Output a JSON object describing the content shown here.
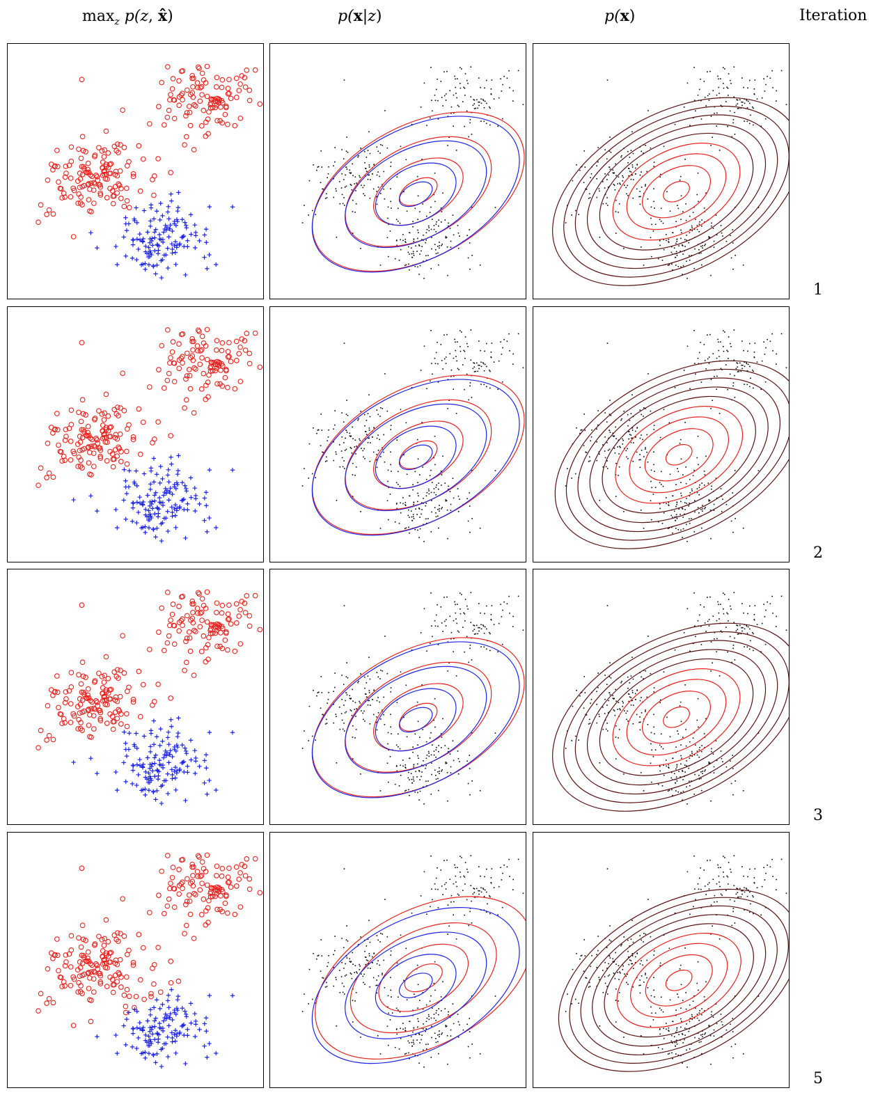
{
  "headers": {
    "col1_max": "max",
    "col1_sub": "z",
    "col1_rest_a": " p(",
    "col1_z": "z",
    "col1_comma": ", ",
    "col1_x": "x̂",
    "col1_close": ")",
    "col2_p": "p(",
    "col2_x": "x",
    "col2_bar": "|",
    "col2_z": "z",
    "col2_close": ")",
    "col3_p": "p(",
    "col3_x": "x",
    "col3_close": ")",
    "iteration": "Iteration"
  },
  "colors": {
    "cluster_a": "#e8201c",
    "cluster_b": "#1c22e8",
    "points": "#000000",
    "component_a_contour": "#e8201c",
    "component_b_contour": "#1c22e8",
    "mixture_outer_contour": "#5a1010",
    "mixture_inner_contour": "#e8201c"
  },
  "chart_data": [
    {
      "type": "scatter",
      "panel": "classification",
      "iteration": "1",
      "markers": {
        "cluster_a": "circle",
        "cluster_b": "plus"
      },
      "clusters": [
        {
          "marker": "circle",
          "color": "red",
          "center": [
            0.78,
            0.78
          ],
          "spread": [
            0.09,
            0.07
          ],
          "count": 110
        },
        {
          "marker": "circle",
          "color": "red",
          "center": [
            0.35,
            0.48
          ],
          "spread": [
            0.1,
            0.08
          ],
          "count": 140
        },
        {
          "marker": "plus",
          "color": "blue",
          "center": [
            0.62,
            0.25
          ],
          "spread": [
            0.09,
            0.07
          ],
          "count": 140
        }
      ],
      "split_line_offset": 0.0
    },
    {
      "type": "line",
      "panel": "components",
      "iteration": "1",
      "ellipses": [
        {
          "component": "a",
          "center": [
            0.58,
            0.42
          ],
          "angle": 62,
          "radii": [
            [
              0.16,
              0.09
            ],
            [
              0.38,
              0.22
            ],
            [
              0.62,
              0.36
            ],
            [
              0.9,
              0.52
            ]
          ]
        },
        {
          "component": "b",
          "center": [
            0.57,
            0.41
          ],
          "angle": 62,
          "radii": [
            [
              0.14,
              0.08
            ],
            [
              0.34,
              0.21
            ],
            [
              0.6,
              0.35
            ],
            [
              0.88,
              0.51
            ]
          ]
        }
      ]
    },
    {
      "type": "line",
      "panel": "mixture",
      "iteration": "1",
      "ellipses": {
        "center": [
          0.56,
          0.42
        ],
        "angle": 62,
        "levels": 9,
        "min_radii": [
          0.11,
          0.07
        ],
        "max_radii": [
          1.05,
          0.62
        ]
      }
    },
    {
      "type": "scatter",
      "panel": "classification",
      "iteration": "2",
      "split_line_offset": -0.04
    },
    {
      "type": "line",
      "panel": "components",
      "iteration": "2",
      "ellipses": [
        {
          "component": "a",
          "center": [
            0.58,
            0.42
          ],
          "angle": 62,
          "radii": [
            [
              0.16,
              0.09
            ],
            [
              0.38,
              0.22
            ],
            [
              0.62,
              0.36
            ],
            [
              0.9,
              0.52
            ]
          ]
        },
        {
          "component": "b",
          "center": [
            0.57,
            0.41
          ],
          "angle": 62,
          "radii": [
            [
              0.14,
              0.08
            ],
            [
              0.34,
              0.21
            ],
            [
              0.6,
              0.35
            ],
            [
              0.88,
              0.51
            ]
          ]
        }
      ]
    },
    {
      "type": "line",
      "panel": "mixture",
      "iteration": "2",
      "ellipses": {
        "center": [
          0.57,
          0.42
        ],
        "angle": 62,
        "levels": 9,
        "min_radii": [
          0.11,
          0.07
        ],
        "max_radii": [
          1.05,
          0.62
        ]
      }
    },
    {
      "type": "scatter",
      "panel": "classification",
      "iteration": "3",
      "split_line_offset": -0.03
    },
    {
      "type": "line",
      "panel": "components",
      "iteration": "3",
      "ellipses": [
        {
          "component": "a",
          "center": [
            0.58,
            0.42
          ],
          "angle": 62,
          "radii": [
            [
              0.16,
              0.09
            ],
            [
              0.38,
              0.22
            ],
            [
              0.62,
              0.36
            ],
            [
              0.9,
              0.52
            ]
          ]
        },
        {
          "component": "b",
          "center": [
            0.57,
            0.41
          ],
          "angle": 62,
          "radii": [
            [
              0.14,
              0.08
            ],
            [
              0.34,
              0.21
            ],
            [
              0.6,
              0.35
            ],
            [
              0.88,
              0.51
            ]
          ]
        }
      ]
    },
    {
      "type": "line",
      "panel": "mixture",
      "iteration": "3",
      "ellipses": {
        "center": [
          0.56,
          0.42
        ],
        "angle": 62,
        "levels": 9,
        "min_radii": [
          0.11,
          0.07
        ],
        "max_radii": [
          1.05,
          0.62
        ]
      }
    },
    {
      "type": "scatter",
      "panel": "classification",
      "iteration": "5",
      "split_line_offset": 0.05
    },
    {
      "type": "line",
      "panel": "components",
      "iteration": "5",
      "ellipses": [
        {
          "component": "a",
          "center": [
            0.6,
            0.43
          ],
          "angle": 62,
          "radii": [
            [
              0.16,
              0.09
            ],
            [
              0.38,
              0.22
            ],
            [
              0.62,
              0.36
            ],
            [
              0.92,
              0.53
            ]
          ]
        },
        {
          "component": "b",
          "center": [
            0.57,
            0.4
          ],
          "angle": 62,
          "radii": [
            [
              0.14,
              0.08
            ],
            [
              0.34,
              0.21
            ],
            [
              0.6,
              0.35
            ],
            [
              0.88,
              0.51
            ]
          ]
        }
      ]
    },
    {
      "type": "line",
      "panel": "mixture",
      "iteration": "5",
      "ellipses": {
        "center": [
          0.57,
          0.42
        ],
        "angle": 62,
        "levels": 9,
        "min_radii": [
          0.11,
          0.07
        ],
        "max_radii": [
          1.02,
          0.6
        ]
      }
    }
  ]
}
